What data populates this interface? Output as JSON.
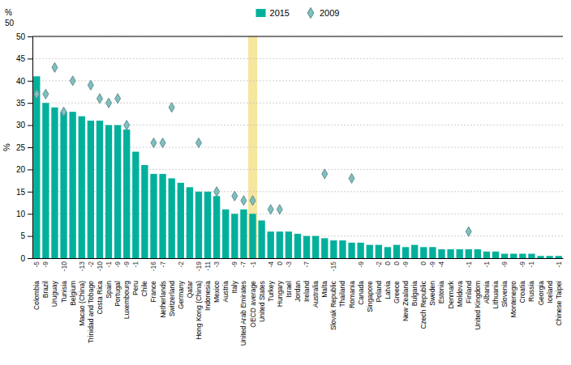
{
  "chart_data": {
    "type": "bar",
    "y_label": "%",
    "annotations": [
      "%",
      "50"
    ],
    "categories": [
      "Colombia",
      "Brazil",
      "Uruguay",
      "Tunisia",
      "Belgium",
      "Macao (China)",
      "Trinidad and Tobago",
      "Costa Rica",
      "Spain",
      "Portugal",
      "Luxembourg",
      "Peru",
      "Chile",
      "France",
      "Netherlands",
      "Switzerland",
      "Germany",
      "Qatar",
      "Hong Kong (China)",
      "Indonesia",
      "Mexico",
      "Austria",
      "Italy",
      "United Arab Emirates",
      "OECD average",
      "United States",
      "Turkey",
      "Hungary",
      "Israel",
      "Jordan",
      "Ireland",
      "Australia",
      "Malta",
      "Slovak Republic",
      "Thailand",
      "Romania",
      "Canada",
      "Singapore",
      "Poland",
      "Latvia",
      "Greece",
      "New Zealand",
      "Bulgaria",
      "Czech Republic",
      "Sweden",
      "Estonia",
      "Denmark",
      "Moldova",
      "Finland",
      "United Kingdom",
      "Albania",
      "Lithuania",
      "Slovenia",
      "Montenegro",
      "Croatia",
      "Russia",
      "Georgia",
      "Iceland",
      "Chinese Taipei"
    ],
    "change_values": [
      -5,
      -9,
      null,
      -10,
      null,
      -13,
      -2,
      -10,
      -1,
      -9,
      -9,
      -1,
      null,
      -16,
      -7,
      null,
      -2,
      null,
      -19,
      -11,
      -3,
      null,
      -9,
      -7,
      -1,
      null,
      -4,
      0,
      -3,
      null,
      -7,
      null,
      null,
      -15,
      null,
      null,
      -9,
      null,
      -2,
      0,
      0,
      -9,
      null,
      0,
      -9,
      -4,
      null,
      null,
      -1,
      null,
      -1,
      null,
      -9,
      null,
      -9,
      -1,
      null,
      null,
      -1
    ],
    "series": [
      {
        "name": "2015",
        "type": "bar",
        "color": "#00b09b",
        "values": [
          41,
          35,
          34,
          33,
          33,
          32,
          31,
          31,
          30,
          30,
          29,
          24,
          21,
          19,
          19,
          18,
          17,
          16,
          15,
          15,
          14,
          11,
          10,
          11,
          10,
          8.5,
          6,
          6,
          6,
          5.5,
          5,
          5,
          4.5,
          4,
          4,
          3.5,
          3.5,
          3,
          3,
          2.5,
          3,
          2.5,
          3,
          2.5,
          2.5,
          2,
          2,
          2,
          2,
          2,
          1.5,
          1.5,
          1,
          1,
          1,
          1,
          0.5,
          0.5,
          0.5
        ]
      },
      {
        "name": "2009",
        "type": "scatter",
        "marker": "diamond",
        "color": "#7fbfbf",
        "values": [
          37,
          37,
          43,
          33,
          40,
          null,
          39,
          36,
          35,
          36,
          30,
          null,
          null,
          26,
          26,
          34,
          null,
          null,
          26,
          null,
          15,
          null,
          14,
          13,
          13,
          null,
          11,
          11,
          null,
          null,
          null,
          null,
          19,
          null,
          null,
          18,
          null,
          null,
          null,
          null,
          null,
          null,
          null,
          null,
          null,
          null,
          null,
          null,
          6,
          null,
          null,
          null,
          null,
          null,
          null,
          null,
          null,
          null,
          null
        ]
      }
    ],
    "highlight": {
      "category": "OECD average",
      "color": "#f5e6a0"
    },
    "ylim": [
      0,
      50
    ],
    "yticks": [
      0,
      5,
      10,
      15,
      20,
      25,
      30,
      35,
      40,
      45,
      50
    ],
    "grid": true,
    "legend": "top"
  }
}
